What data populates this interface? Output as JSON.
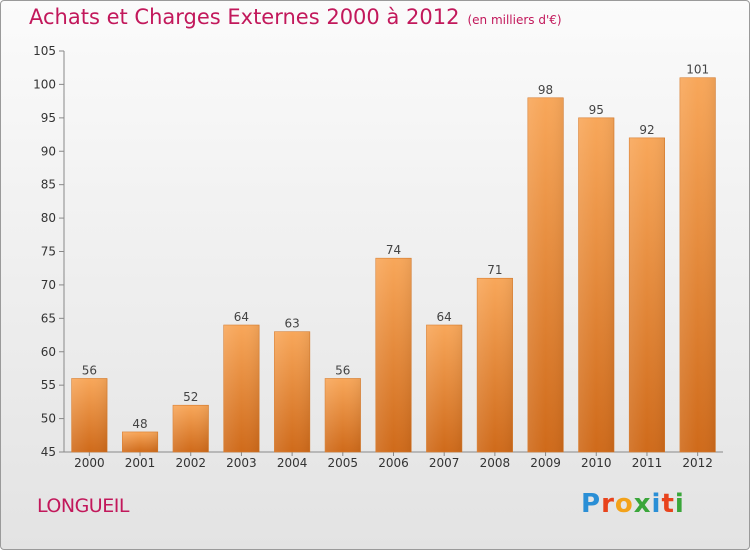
{
  "header": {
    "title": "Achats et Charges Externes 2000 à 2012",
    "subtitle": "(en milliers d'€)"
  },
  "location": "LONGUEIL",
  "brand": {
    "letters": [
      "P",
      "r",
      "o",
      "x",
      "i",
      "t",
      "i"
    ],
    "colors": [
      "#2a8fd6",
      "#e8431c",
      "#f3a21a",
      "#3aa63a",
      "#2a8fd6",
      "#e8431c",
      "#3aa63a"
    ]
  },
  "chart_data": {
    "type": "bar",
    "title": "Achats et Charges Externes 2000 à 2012",
    "categories": [
      "2000",
      "2001",
      "2002",
      "2003",
      "2004",
      "2005",
      "2006",
      "2007",
      "2008",
      "2009",
      "2010",
      "2011",
      "2012"
    ],
    "values": [
      56,
      48,
      52,
      64,
      63,
      56,
      74,
      64,
      71,
      98,
      95,
      92,
      101
    ],
    "ylim": [
      45,
      105
    ],
    "yticks": [
      45,
      50,
      55,
      60,
      65,
      70,
      75,
      80,
      85,
      90,
      95,
      100,
      105
    ],
    "grid": false,
    "bar_color": "#f0913e",
    "data_labels": true
  }
}
